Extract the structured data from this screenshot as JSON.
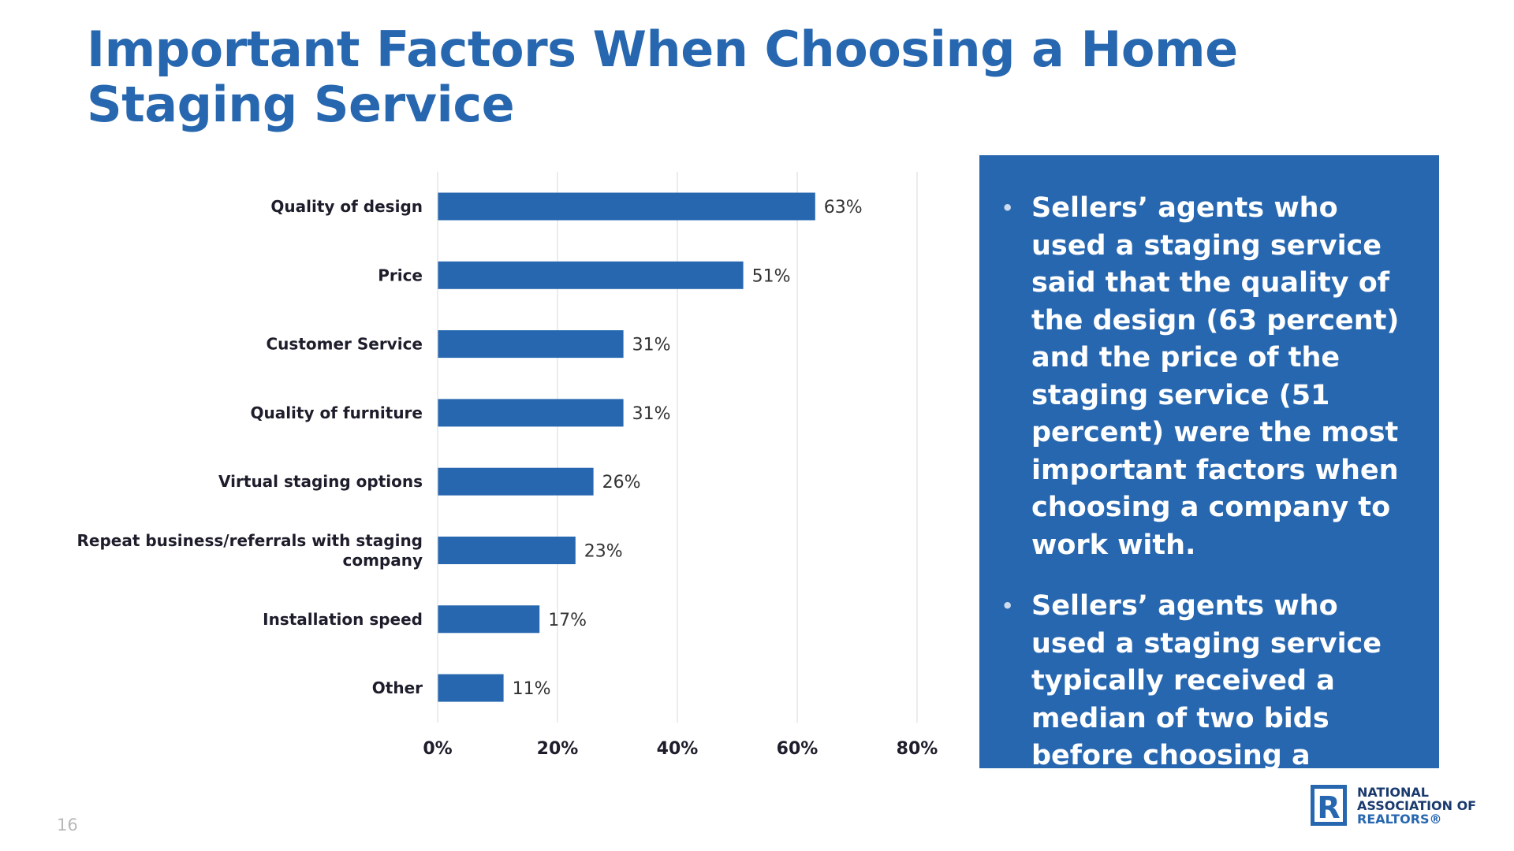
{
  "title": "Important Factors When Choosing a Home Staging Service",
  "panel": {
    "bullets": [
      "Sellers’ agents who used a staging service said that the quality of the design (63 percent) and the price of the staging service (51 percent) were the most important factors when choosing a company to work with.",
      "Sellers’ agents who used a staging service typically received a median of two bids before choosing a company to work with."
    ],
    "bullet_glyph": "•"
  },
  "page_number": "16",
  "logo": {
    "line1": "NATIONAL",
    "line2": "ASSOCIATION OF",
    "line3": "REALTORS®",
    "mark_letter": "R"
  },
  "colors": {
    "accent": "#2767b0",
    "bar": "#2767b0",
    "grid": "#d9d9d9",
    "logo_dark": "#1a3a6e"
  },
  "chart_data": {
    "type": "bar",
    "orientation": "horizontal",
    "categories": [
      "Quality of design",
      "Price",
      "Customer Service",
      "Quality of furniture",
      "Virtual staging options",
      "Repeat business/referrals with staging company",
      "Installation speed",
      "Other"
    ],
    "category_lines": [
      [
        "Quality of design"
      ],
      [
        "Price"
      ],
      [
        "Customer Service"
      ],
      [
        "Quality of furniture"
      ],
      [
        "Virtual staging options"
      ],
      [
        "Repeat business/referrals with staging",
        "company"
      ],
      [
        "Installation speed"
      ],
      [
        "Other"
      ]
    ],
    "values": [
      63,
      51,
      31,
      31,
      26,
      23,
      17,
      11
    ],
    "value_labels": [
      "63%",
      "51%",
      "31%",
      "31%",
      "26%",
      "23%",
      "17%",
      "11%"
    ],
    "xlim": [
      0,
      80
    ],
    "xticks": [
      0,
      20,
      40,
      60,
      80
    ],
    "xtick_labels": [
      "0%",
      "20%",
      "40%",
      "60%",
      "80%"
    ],
    "grid": true,
    "legend": "none",
    "title": "",
    "xlabel": "",
    "ylabel": ""
  }
}
